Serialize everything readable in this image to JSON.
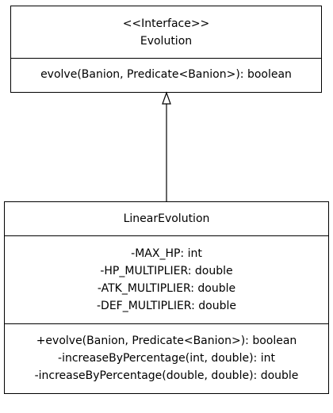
{
  "evolution": {
    "stereotype": "<<Interface>>",
    "name": "Evolution",
    "methods": [
      "evolve(Banion, Predicate<Banion>): boolean"
    ]
  },
  "linear_evolution": {
    "name": "LinearEvolution",
    "attributes": [
      "-MAX_HP: int",
      "-HP_MULTIPLIER: double",
      "-ATK_MULTIPLIER: double",
      "-DEF_MULTIPLIER: double"
    ],
    "methods": [
      "+evolve(Banion, Predicate<Banion>): boolean",
      "-increaseByPercentage(int, double): int",
      "-increaseByPercentage(double, double): double"
    ]
  },
  "relationship": {
    "type": "realization",
    "from": "LinearEvolution",
    "to": "Evolution"
  }
}
